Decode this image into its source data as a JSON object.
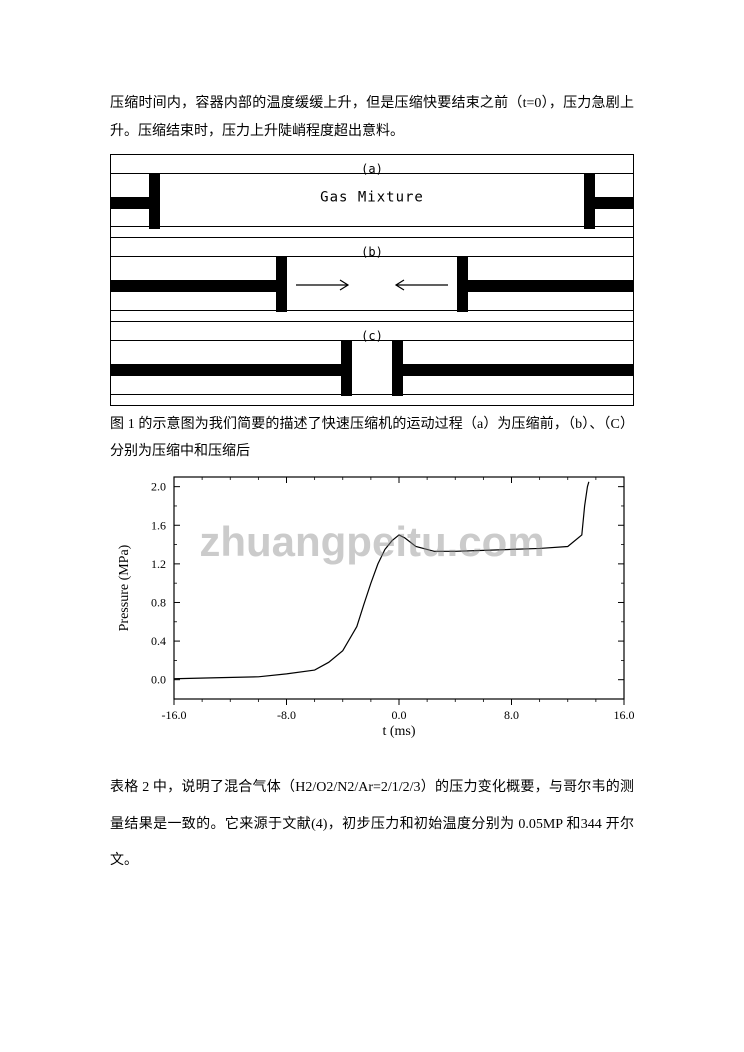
{
  "paragraph1": "压缩时间内，容器内部的温度缓缓上升，但是压缩快要结束之前（t=0），压力急剧上升。压缩结束时，压力上升陡峭程度超出意料。",
  "diagram": {
    "panels": [
      {
        "label": "(a)",
        "text": "Gas Mixture"
      },
      {
        "label": "(b)",
        "text": ""
      },
      {
        "label": "(c)",
        "text": ""
      }
    ],
    "stroke_color": "#000000",
    "fill_color": "#000000",
    "background": "#ffffff"
  },
  "caption1": "图 1 的示意图为我们简要的描述了快速压缩机的运动过程（a）为压缩前，（b）、（C）分别为压缩中和压缩后",
  "chart": {
    "type": "line",
    "xlabel": "t (ms)",
    "ylabel": "Pressure (MPa)",
    "xlim": [
      -16.0,
      16.0
    ],
    "ylim": [
      -0.2,
      2.1
    ],
    "xticks": [
      -16.0,
      -8.0,
      0.0,
      8.0,
      16.0
    ],
    "yticks": [
      0.0,
      0.4,
      0.8,
      1.2,
      1.6,
      2.0
    ],
    "xtick_labels": [
      "-16.0",
      "-8.0",
      "0.0",
      "8.0",
      "16.0"
    ],
    "ytick_labels": [
      "0.0",
      "0.4",
      "0.8",
      "1.2",
      "1.6",
      "2.0"
    ],
    "line_color": "#000000",
    "line_width": 1.2,
    "background_color": "#ffffff",
    "axis_color": "#000000",
    "tick_fontsize": 12,
    "label_fontsize": 14,
    "data": {
      "x": [
        -16.0,
        -13.0,
        -10.0,
        -8.0,
        -6.0,
        -5.0,
        -4.0,
        -3.0,
        -2.5,
        -2.0,
        -1.5,
        -1.0,
        -0.5,
        0.0,
        0.4,
        1.2,
        2.5,
        4.0,
        6.0,
        8.0,
        10.0,
        12.0,
        13.0,
        13.2,
        13.4,
        13.5
      ],
      "y": [
        0.01,
        0.02,
        0.03,
        0.06,
        0.1,
        0.18,
        0.3,
        0.55,
        0.78,
        1.0,
        1.2,
        1.35,
        1.44,
        1.5,
        1.47,
        1.38,
        1.33,
        1.33,
        1.34,
        1.35,
        1.36,
        1.38,
        1.5,
        1.8,
        2.0,
        2.05
      ]
    }
  },
  "paragraph2": "表格 2 中，说明了混合气体（H2/O2/N2/Ar=2/1/2/3）的压力变化概要，与哥尔韦的测量结果是一致的。它来源于文献(4)，初步压力和初始温度分别为 0.05MP 和344 开尔文。",
  "watermark": "zhuangpeitu.com"
}
